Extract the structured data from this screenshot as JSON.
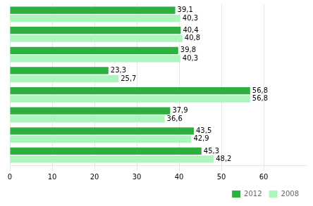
{
  "chart_data": {
    "type": "bar",
    "orientation": "horizontal",
    "categories": [
      null,
      null,
      null,
      null,
      null,
      null,
      null,
      null
    ],
    "series": [
      {
        "name": "2012",
        "color": "#2db040",
        "values": [
          39.1,
          40.4,
          39.8,
          23.3,
          56.8,
          37.9,
          43.5,
          45.3
        ],
        "value_labels": [
          "39,1",
          "40,4",
          "39,8",
          "23,3",
          "56,8",
          "37,9",
          "43,5",
          "45,3"
        ]
      },
      {
        "name": "2008",
        "color": "#adf5bc",
        "values": [
          40.3,
          40.8,
          40.3,
          25.7,
          56.8,
          36.6,
          42.9,
          48.2
        ],
        "value_labels": [
          "40,3",
          "40,8",
          "40,3",
          "25,7",
          "56,8",
          "36,6",
          "42,9",
          "48,2"
        ]
      }
    ],
    "xlim": [
      0,
      70
    ],
    "xticks": [
      0,
      10,
      20,
      30,
      40,
      50,
      60
    ],
    "grid": true,
    "legend": "lower right",
    "data_labels": true,
    "tick_labels": "x"
  }
}
